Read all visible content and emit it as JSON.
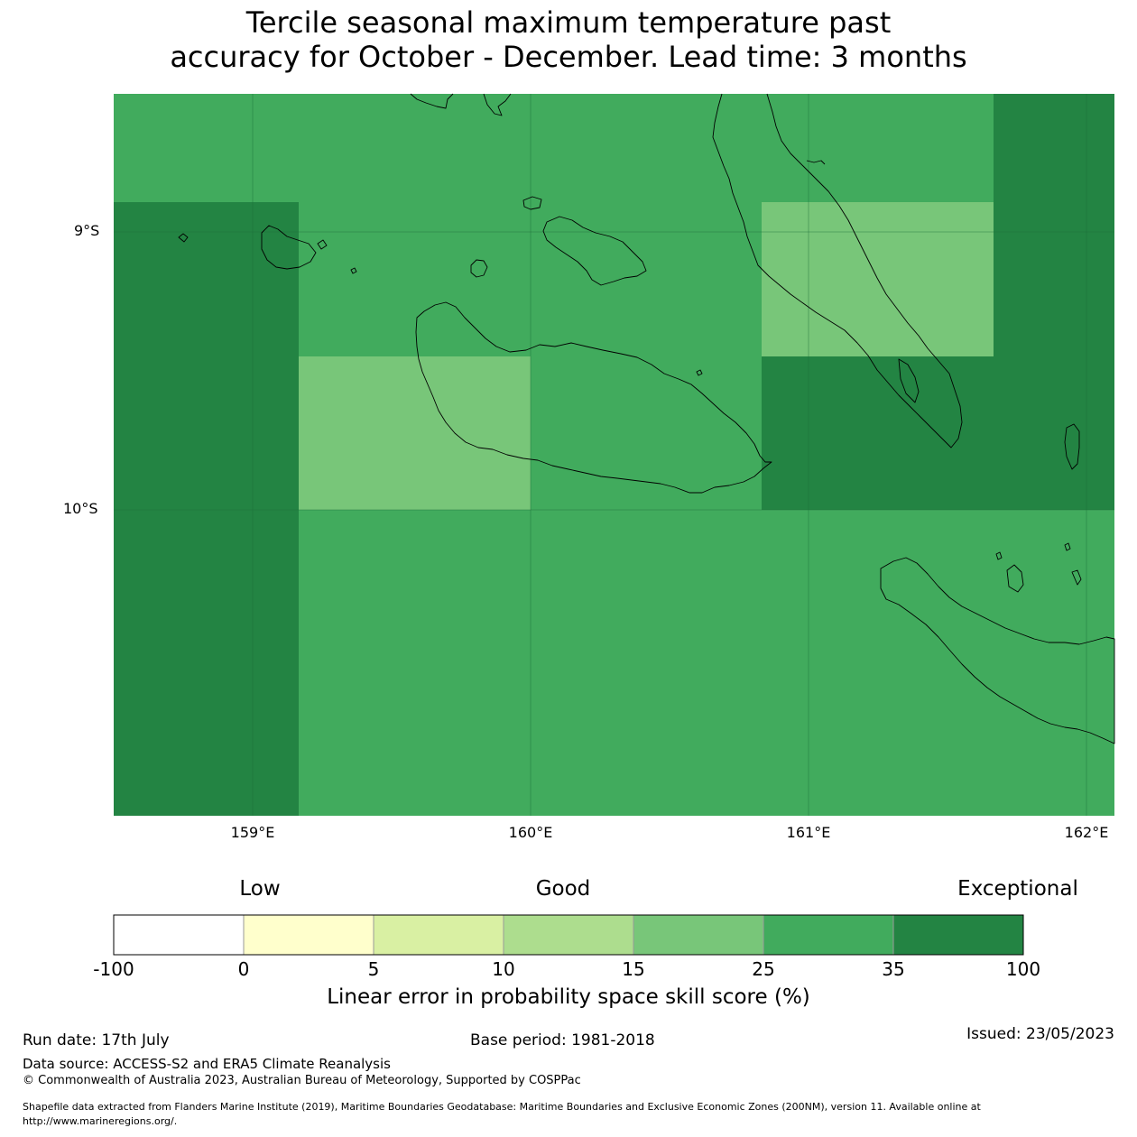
{
  "title": {
    "line1": "Tercile seasonal maximum temperature past",
    "line2": "accuracy for October - December. Lead time: 3 months"
  },
  "map": {
    "lat_labels": [
      "9°S",
      "10°S"
    ],
    "lon_labels": [
      "159°E",
      "160°E",
      "161°E",
      "162°E"
    ]
  },
  "legend": {
    "categories": [
      "Low",
      "Good",
      "Exceptional"
    ],
    "ticks": [
      "-100",
      "0",
      "5",
      "10",
      "15",
      "25",
      "35",
      "100"
    ],
    "colors": [
      "#ffffff",
      "#ffffcc",
      "#d9f0a3",
      "#addd8e",
      "#78c679",
      "#41ab5d",
      "#238443"
    ],
    "title": "Linear error in probability space skill score (%)"
  },
  "footer": {
    "run_date": "Run date: 17th July",
    "base_period": "Base period: 1981-2018",
    "issued": "Issued: 23/05/2023",
    "data_source": "Data source: ACCESS-S2 and ERA5 Climate Reanalysis",
    "copyright": "© Commonwealth of Australia 2023, Australian Bureau of Meteorology, Supported by COSPPac",
    "shapefile_line1": "Shapefile data extracted from Flanders Marine Institute (2019), Maritime Boundaries Geodatabase: Maritime Boundaries and Exclusive Economic Zones (200NM), version 11. Available online at",
    "shapefile_line2": "http://www.marineregions.org/."
  }
}
